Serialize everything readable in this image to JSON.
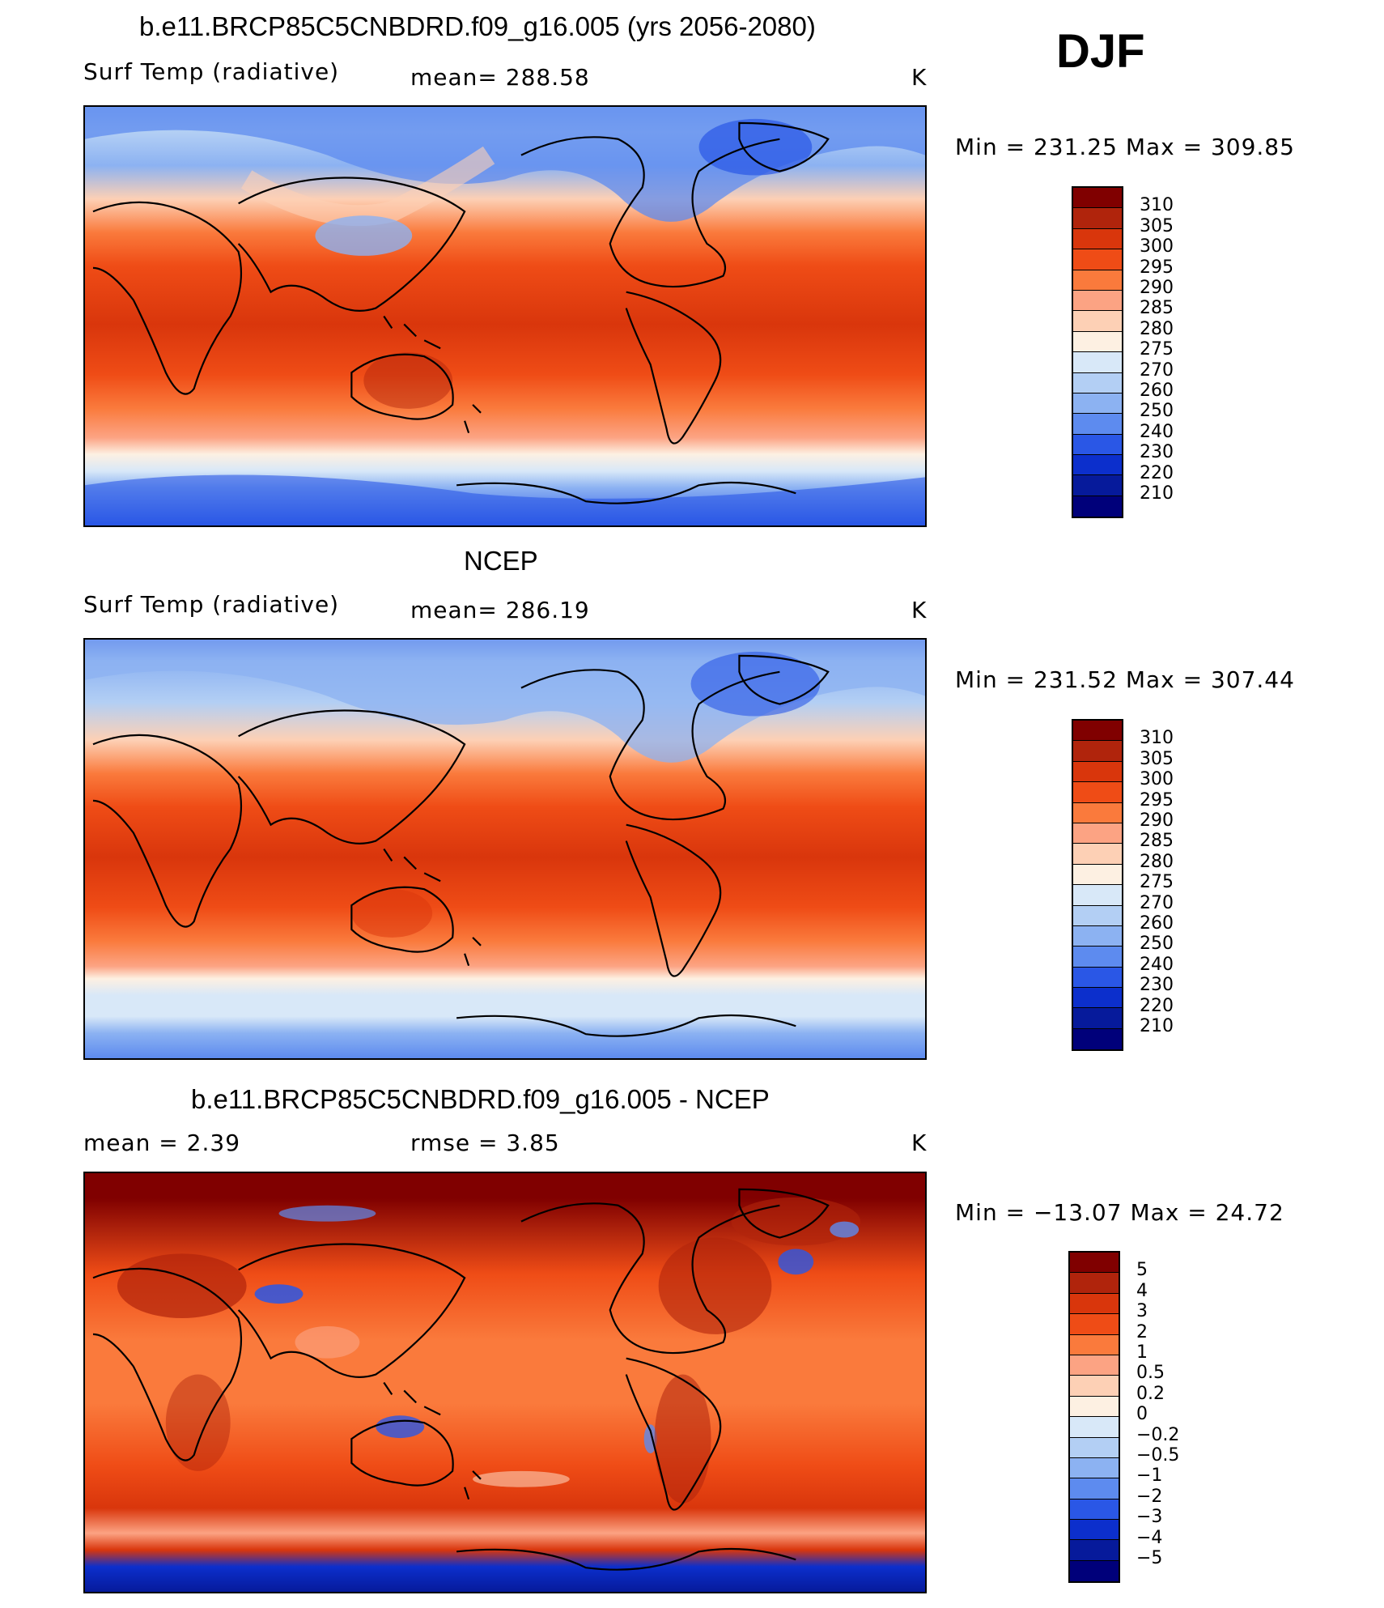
{
  "season": "DJF",
  "panels": [
    {
      "title": "b.e11.BRCP85C5CNBDRD.f09_g16.005 (yrs 2056-2080)",
      "left_label": "Surf Temp (radiative)",
      "center_label": "mean= 288.58",
      "units": "K",
      "minmax": "Min = 231.25 Max = 309.85",
      "colorbar_labels": [
        "310",
        "305",
        "300",
        "295",
        "290",
        "285",
        "280",
        "275",
        "270",
        "260",
        "250",
        "240",
        "230",
        "220",
        "210"
      ],
      "colorbar_colors": [
        "#800000",
        "#b0240c",
        "#d9360c",
        "#ef4c16",
        "#fa7a3c",
        "#fca383",
        "#fdd0b5",
        "#fdf0e2",
        "#d8e8f8",
        "#b3cff4",
        "#8cb2f2",
        "#5d8bef",
        "#2a57e6",
        "#0c2fcc",
        "#061a9b",
        "#00007a"
      ]
    },
    {
      "title": "NCEP",
      "left_label": "Surf Temp (radiative)",
      "center_label": "mean= 286.19",
      "units": "K",
      "minmax": "Min = 231.52 Max = 307.44",
      "colorbar_labels": [
        "310",
        "305",
        "300",
        "295",
        "290",
        "285",
        "280",
        "275",
        "270",
        "260",
        "250",
        "240",
        "230",
        "220",
        "210"
      ],
      "colorbar_colors": [
        "#800000",
        "#b0240c",
        "#d9360c",
        "#ef4c16",
        "#fa7a3c",
        "#fca383",
        "#fdd0b5",
        "#fdf0e2",
        "#d8e8f8",
        "#b3cff4",
        "#8cb2f2",
        "#5d8bef",
        "#2a57e6",
        "#0c2fcc",
        "#061a9b",
        "#00007a"
      ]
    },
    {
      "title": "b.e11.BRCP85C5CNBDRD.f09_g16.005 - NCEP",
      "left_label": "mean =     2.39",
      "center_label": "rmse =     3.85",
      "units": "K",
      "minmax": "Min = −13.07 Max =   24.72",
      "colorbar_labels": [
        "5",
        "4",
        "3",
        "2",
        "1",
        "0.5",
        "0.2",
        "0",
        "−0.2",
        "−0.5",
        "−1",
        "−2",
        "−3",
        "−4",
        "−5"
      ],
      "colorbar_colors": [
        "#800000",
        "#b0240c",
        "#d9360c",
        "#ef4c16",
        "#fa7a3c",
        "#fca383",
        "#fdd0b5",
        "#fdf0e2",
        "#d8e8f8",
        "#b3cff4",
        "#8cb2f2",
        "#5d8bef",
        "#2a57e6",
        "#0c2fcc",
        "#061a9b",
        "#00007a"
      ]
    }
  ]
}
